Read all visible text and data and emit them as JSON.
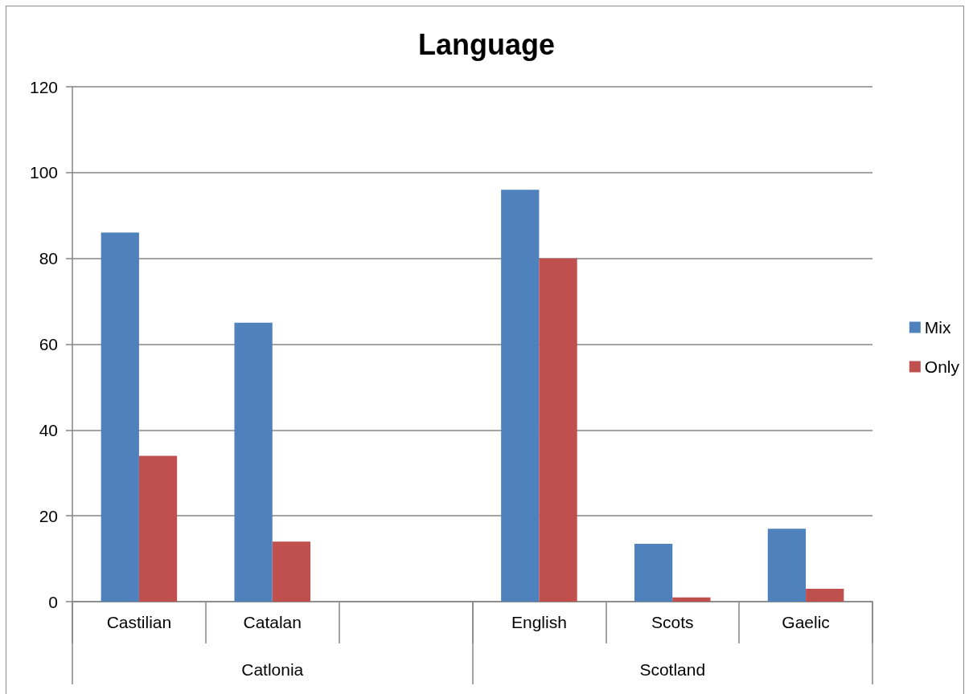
{
  "chart_data": {
    "type": "bar",
    "title": "Language",
    "categories": [
      "Castilian",
      "Catalan",
      null,
      "English",
      "Scots",
      "Gaelic"
    ],
    "series": [
      {
        "name": "Mix",
        "color": "#4f81bd",
        "values": [
          86,
          65,
          null,
          96,
          13.5,
          17
        ]
      },
      {
        "name": "Only",
        "color": "#c0504d",
        "values": [
          34,
          14,
          null,
          80,
          1,
          3
        ]
      }
    ],
    "ylim": [
      0,
      120
    ],
    "yticks": [
      0,
      20,
      40,
      60,
      80,
      100,
      120
    ],
    "grid": "y",
    "legend": "right",
    "annotations": [
      "Catlonia",
      "Scotland"
    ]
  }
}
